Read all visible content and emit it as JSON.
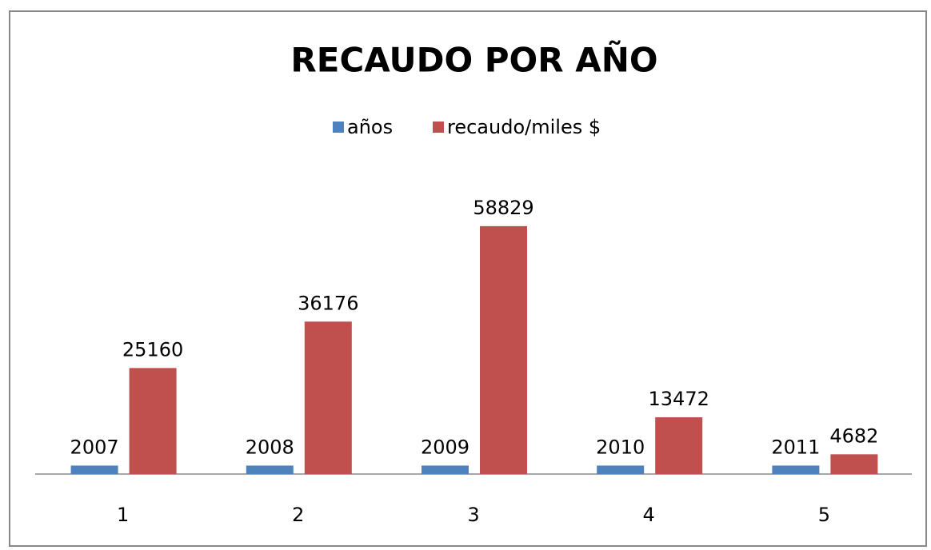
{
  "chart_data": {
    "type": "bar",
    "title": "RECAUDO POR AÑO",
    "categories": [
      "1",
      "2",
      "3",
      "4",
      "5"
    ],
    "series": [
      {
        "name": "años",
        "color": "#4f81bd",
        "values": [
          2007,
          2008,
          2009,
          2010,
          2011
        ]
      },
      {
        "name": "recaudo/miles $",
        "color": "#c0504d",
        "values": [
          25160,
          36176,
          58829,
          13472,
          4682
        ]
      }
    ],
    "ylim": [
      0,
      70000
    ],
    "legend": "top"
  }
}
